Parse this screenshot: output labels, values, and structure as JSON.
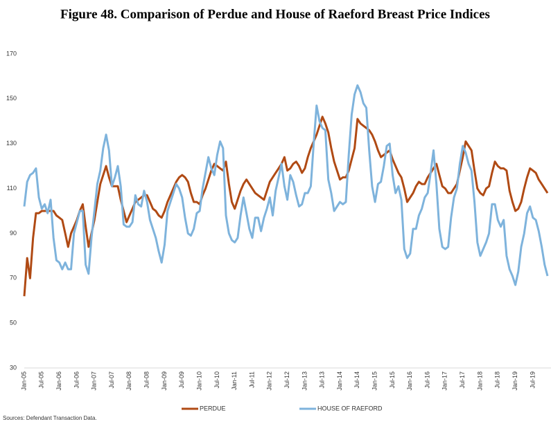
{
  "chart_data": {
    "type": "line",
    "title": "Figure 48. Comparison  of Perdue and House of Raeford Breast Price Indices",
    "source": "Sources: Defendant Transaction Data.",
    "categories": [
      "Jan-05",
      null,
      null,
      null,
      null,
      null,
      "Jul-05",
      null,
      null,
      null,
      null,
      null,
      "Jan-06",
      null,
      null,
      null,
      null,
      null,
      "Jul-06",
      null,
      null,
      null,
      null,
      null,
      "Jan-07",
      null,
      null,
      null,
      null,
      null,
      "Jul-07",
      null,
      null,
      null,
      null,
      null,
      "Jan-08",
      null,
      null,
      null,
      null,
      null,
      "Jul-08",
      null,
      null,
      null,
      null,
      null,
      "Jan-09",
      null,
      null,
      null,
      null,
      null,
      "Jul-09",
      null,
      null,
      null,
      null,
      null,
      "Jan-10",
      null,
      null,
      null,
      null,
      null,
      "Jul-10",
      null,
      null,
      null,
      null,
      null,
      "Jan-11",
      null,
      null,
      null,
      null,
      null,
      "Jul-11",
      null,
      null,
      null,
      null,
      null,
      "Jan-12",
      null,
      null,
      null,
      null,
      null,
      "Jul-12",
      null,
      null,
      null,
      null,
      null,
      "Jan-13",
      null,
      null,
      null,
      null,
      null,
      "Jul-13",
      null,
      null,
      null,
      null,
      null,
      "Jan-14",
      null,
      null,
      null,
      null,
      null,
      "Jul-14",
      null,
      null,
      null,
      null,
      null,
      "Jan-15",
      null,
      null,
      null,
      null,
      null,
      "Jul-15",
      null,
      null,
      null,
      null,
      null,
      "Jan-16",
      null,
      null,
      null,
      null,
      null,
      "Jul-16",
      null,
      null,
      null,
      null,
      null,
      "Jan-17",
      null,
      null,
      null,
      null,
      null,
      "Jul-17",
      null,
      null,
      null,
      null,
      null,
      "Jan-18",
      null,
      null,
      null,
      null,
      null,
      "Jul-18",
      null,
      null,
      null,
      null,
      null,
      "Jan-19",
      null,
      null,
      null,
      null,
      null,
      "Jul-19",
      null,
      null,
      null,
      null,
      null
    ],
    "series": [
      {
        "name": "PERDUE",
        "color": "#b04a14",
        "values": [
          62,
          79,
          70,
          88,
          99,
          99,
          100,
          100,
          100,
          100,
          100,
          98,
          97,
          96,
          90,
          84,
          90,
          93,
          96,
          100,
          103,
          93,
          84,
          90,
          96,
          104,
          112,
          116,
          120,
          115,
          111,
          111,
          111,
          105,
          100,
          95,
          98,
          101,
          104,
          105,
          106,
          107,
          107,
          104,
          101,
          100,
          98,
          97,
          100,
          104,
          107,
          110,
          113,
          115,
          116,
          115,
          113,
          108,
          104,
          104,
          103,
          107,
          110,
          114,
          118,
          121,
          120,
          119,
          118,
          122,
          112,
          104,
          101,
          105,
          109,
          112,
          114,
          112,
          110,
          108,
          107,
          106,
          105,
          109,
          113,
          115,
          117,
          119,
          121,
          124,
          118,
          119,
          121,
          122,
          120,
          117,
          119,
          124,
          128,
          131,
          134,
          138,
          142,
          139,
          135,
          128,
          122,
          118,
          114,
          115,
          115,
          118,
          123,
          128,
          141,
          139,
          138,
          137,
          136,
          134,
          131,
          127,
          124,
          125,
          126,
          127,
          123,
          120,
          117,
          115,
          110,
          104,
          106,
          108,
          111,
          113,
          112,
          112,
          115,
          117,
          119,
          121,
          116,
          111,
          110,
          108,
          108,
          110,
          112,
          118,
          124,
          131,
          129,
          127,
          118,
          110,
          108,
          107,
          110,
          111,
          117,
          122,
          120,
          119,
          119,
          118,
          109,
          104,
          100,
          101,
          104,
          110,
          115,
          119,
          118,
          117,
          114,
          112,
          110,
          108
        ]
      },
      {
        "name": "HOUSE OF RAEFORD",
        "color": "#7eb3dc",
        "values": [
          102,
          113,
          116,
          117,
          119,
          106,
          101,
          103,
          99,
          105,
          88,
          78,
          77,
          74,
          77,
          74,
          74,
          90,
          95,
          100,
          100,
          76,
          72,
          88,
          100,
          112,
          118,
          128,
          134,
          127,
          111,
          115,
          120,
          111,
          94,
          93,
          93,
          95,
          107,
          103,
          102,
          109,
          104,
          96,
          92,
          88,
          82,
          77,
          85,
          100,
          104,
          108,
          112,
          110,
          106,
          97,
          90,
          89,
          92,
          99,
          100,
          110,
          117,
          124,
          119,
          116,
          125,
          131,
          128,
          98,
          90,
          87,
          86,
          88,
          98,
          106,
          99,
          92,
          88,
          97,
          97,
          91,
          97,
          101,
          106,
          98,
          109,
          115,
          121,
          111,
          105,
          116,
          113,
          107,
          102,
          103,
          108,
          108,
          111,
          130,
          147,
          140,
          137,
          136,
          114,
          108,
          100,
          102,
          104,
          103,
          104,
          125,
          143,
          152,
          156,
          153,
          148,
          146,
          127,
          111,
          104,
          112,
          113,
          120,
          129,
          130,
          116,
          108,
          111,
          105,
          83,
          79,
          81,
          92,
          92,
          98,
          101,
          106,
          108,
          117,
          127,
          112,
          92,
          84,
          83,
          84,
          97,
          106,
          110,
          121,
          129,
          126,
          121,
          118,
          104,
          86,
          80,
          83,
          86,
          90,
          103,
          103,
          96,
          93,
          96,
          80,
          74,
          71,
          67,
          73,
          84,
          90,
          99,
          102,
          97,
          96,
          91,
          84,
          76,
          71
        ]
      }
    ],
    "ylim": [
      30,
      170
    ],
    "yticks": [
      30,
      50,
      70,
      90,
      110,
      130,
      150,
      170
    ],
    "grid": false,
    "legend": "bottom"
  }
}
